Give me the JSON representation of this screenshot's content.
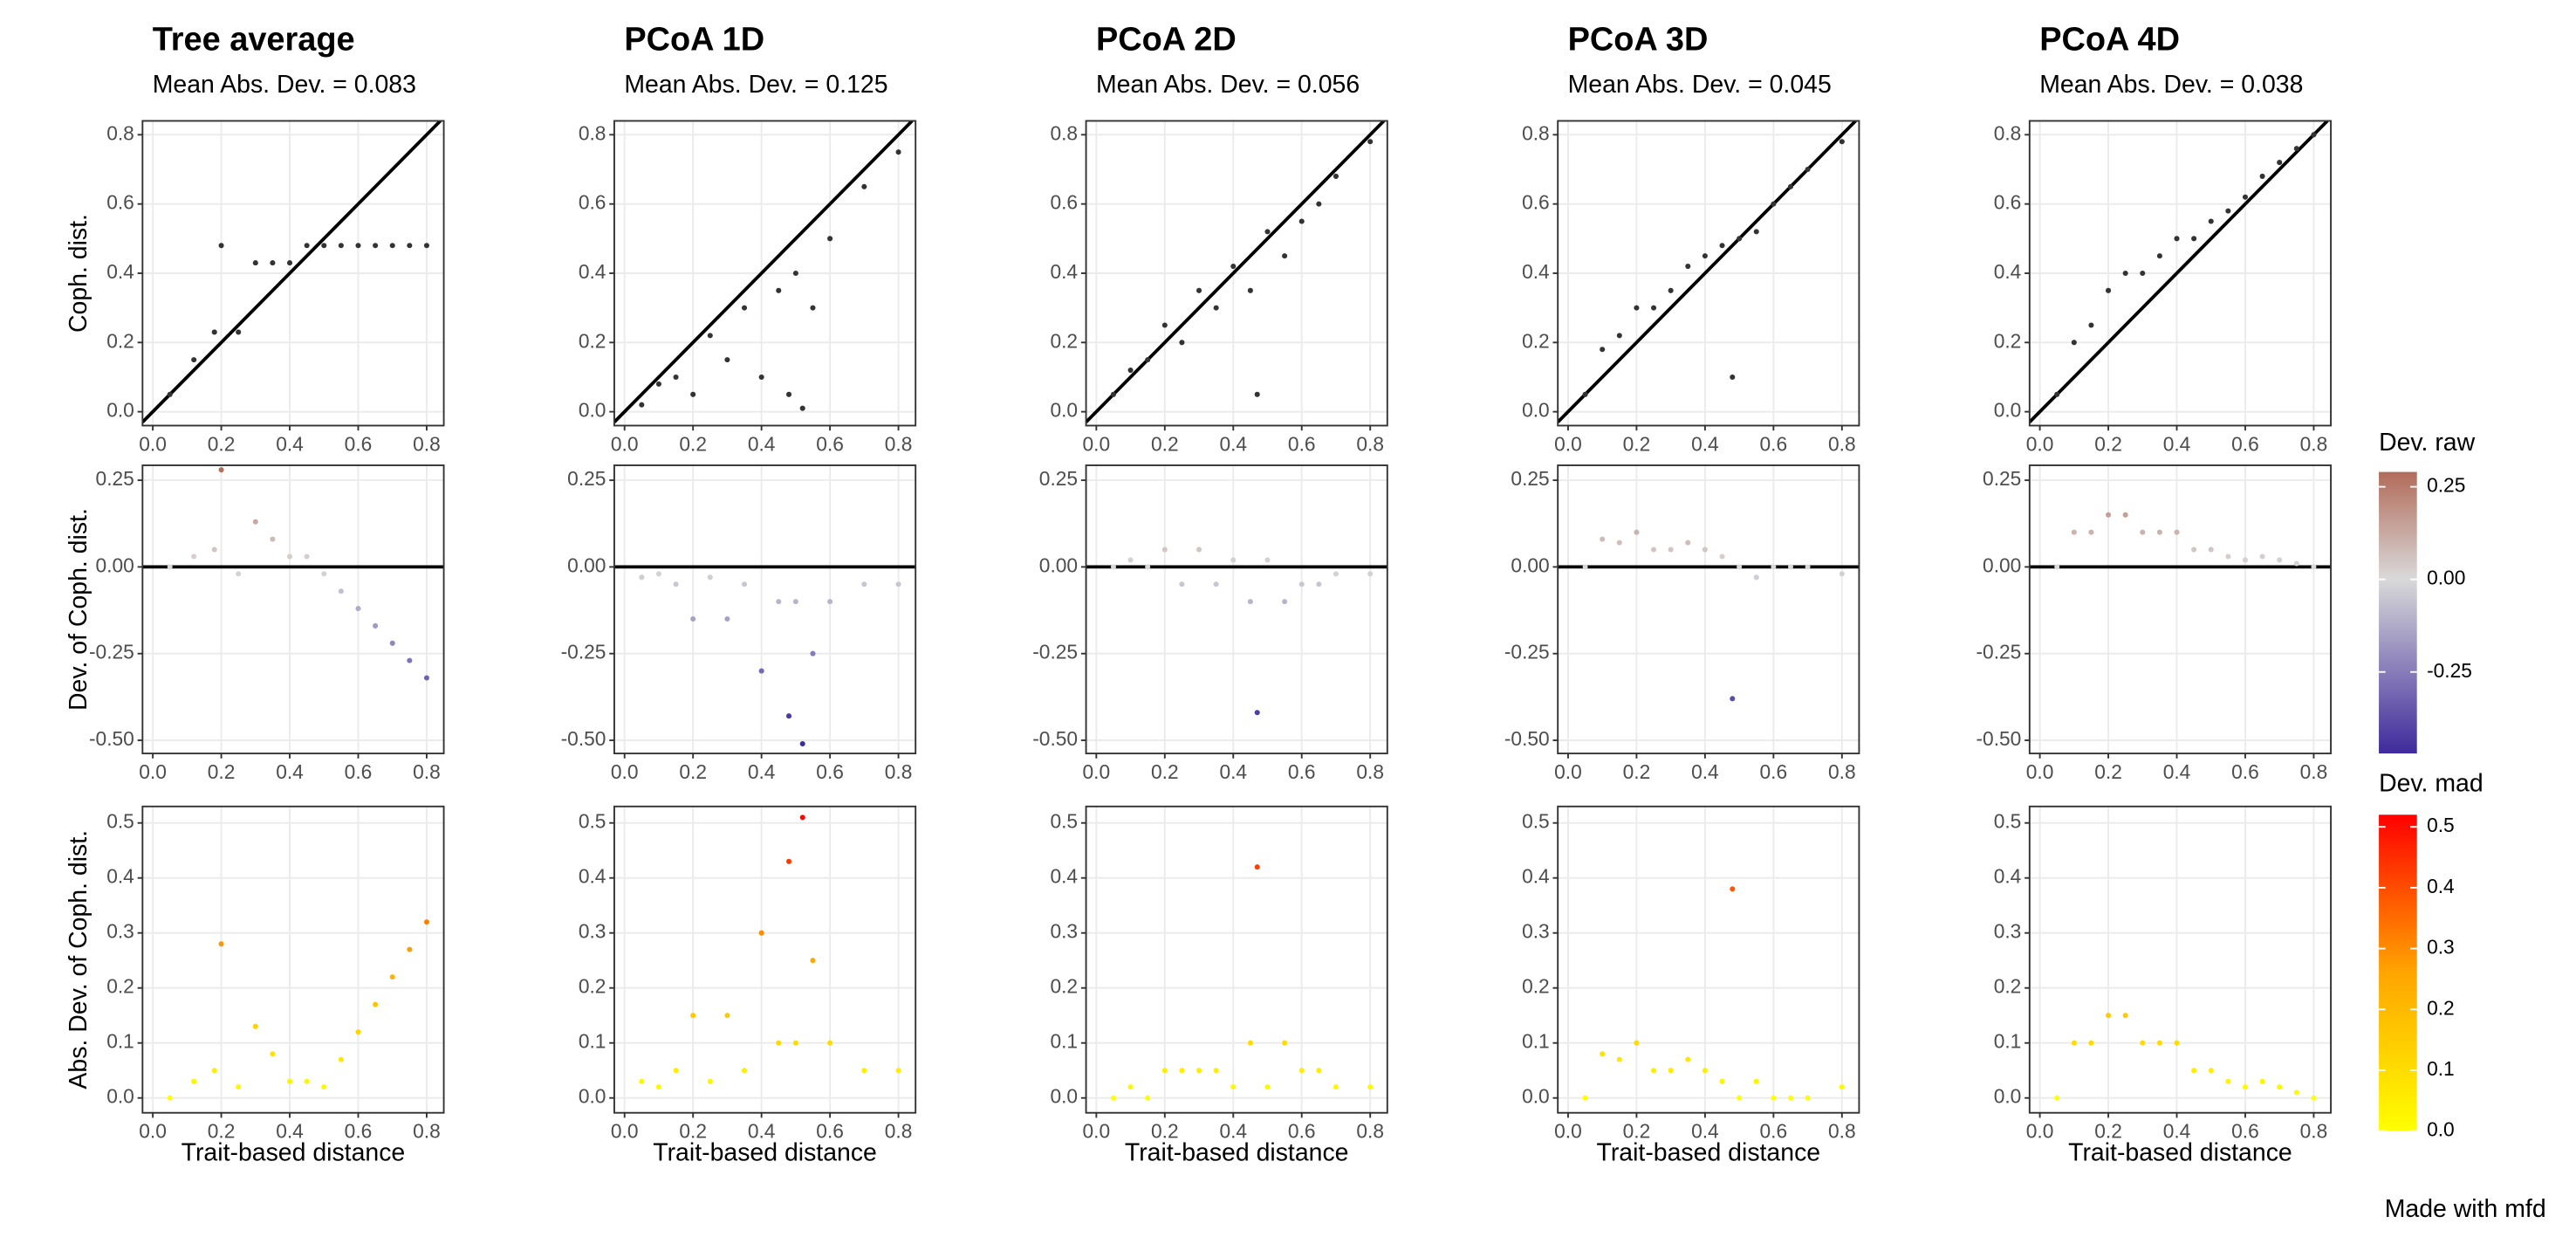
{
  "chart_data": {
    "type": "scatter",
    "caption": "Made with mfd",
    "x_label": "Trait-based distance",
    "xlim": [
      -0.03,
      0.85
    ],
    "xticks": [
      {
        "value": 0,
        "label": "0.0"
      },
      0.2,
      0.4,
      0.6,
      0.8
    ],
    "grid": true,
    "rows": [
      {
        "y_label": "Coph. dist.",
        "ylim": [
          -0.04,
          0.84
        ],
        "yticks": [
          {
            "value": 0,
            "label": "0.0"
          },
          0.2,
          0.4,
          0.6,
          0.8
        ],
        "reference_line": "diagonal",
        "point_color": "#333333"
      },
      {
        "y_label": "Dev. of Coph. dist.",
        "ylim": [
          -0.538,
          0.293
        ],
        "yticks": [
          0.25,
          {
            "value": 0,
            "label": "0.00"
          },
          -0.25,
          {
            "value": -0.5,
            "label": "-0.50"
          }
        ],
        "reference_line": "zero",
        "color_scale": {
          "title": "Dev. raw",
          "lim": [
            -0.47,
            0.29
          ],
          "stops": [
            -0.47,
            0,
            0.29
          ],
          "colors": [
            "#3f2a9c",
            "#d9d9d9",
            "#b26b5a"
          ],
          "ticks": [
            0.25,
            {
              "value": 0,
              "label": "0.00"
            },
            -0.25
          ]
        }
      },
      {
        "y_label": "Abs. Dev. of Coph. dist.",
        "ylim": [
          -0.027,
          0.53
        ],
        "yticks": [
          {
            "value": 0,
            "label": "0.0"
          },
          0.1,
          0.2,
          0.3,
          0.4,
          0.5
        ],
        "reference_line": "none",
        "color_scale": {
          "title": "Dev. mad",
          "lim": [
            0,
            0.52
          ],
          "stops": [
            0,
            0.26,
            0.52
          ],
          "colors": [
            "#ffff00",
            "#ffa500",
            "#ff0000"
          ],
          "ticks": [
            0.5,
            0.4,
            0.3,
            0.2,
            0.1,
            {
              "value": 0,
              "label": "0.0"
            }
          ]
        }
      }
    ],
    "columns": [
      {
        "title": "Tree average",
        "subtitle": "Mean Abs. Dev. = 0.083",
        "x": [
          0.05,
          0.12,
          0.18,
          0.2,
          0.25,
          0.3,
          0.35,
          0.4,
          0.45,
          0.5,
          0.55,
          0.6,
          0.65,
          0.7,
          0.75,
          0.8
        ],
        "panels": [
          {
            "y": [
              0.05,
              0.15,
              0.23,
              0.48,
              0.23,
              0.43,
              0.43,
              0.43,
              0.48,
              0.48,
              0.48,
              0.48,
              0.48,
              0.48,
              0.48,
              0.48
            ]
          },
          {
            "y": [
              0,
              0.03,
              0.05,
              0.28,
              -0.02,
              0.13,
              0.08,
              0.03,
              0.03,
              -0.02,
              -0.07,
              -0.12,
              -0.17,
              -0.22,
              -0.27,
              -0.32
            ]
          },
          {
            "y": [
              0,
              0.03,
              0.05,
              0.28,
              0.02,
              0.13,
              0.08,
              0.03,
              0.03,
              0.02,
              0.07,
              0.12,
              0.17,
              0.22,
              0.27,
              0.32
            ]
          }
        ]
      },
      {
        "title": "PCoA 1D",
        "subtitle": "Mean Abs. Dev. = 0.125",
        "x": [
          0.05,
          0.1,
          0.15,
          0.2,
          0.25,
          0.3,
          0.35,
          0.4,
          0.45,
          0.48,
          0.5,
          0.52,
          0.55,
          0.6,
          0.7,
          0.8
        ],
        "panels": [
          {
            "y": [
              0.02,
              0.08,
              0.1,
              0.05,
              0.22,
              0.15,
              0.3,
              0.1,
              0.35,
              0.05,
              0.4,
              0.01,
              0.3,
              0.5,
              0.65,
              0.75
            ]
          },
          {
            "y": [
              -0.03,
              -0.02,
              -0.05,
              -0.15,
              -0.03,
              -0.15,
              -0.05,
              -0.3,
              -0.1,
              -0.43,
              -0.1,
              -0.51,
              -0.25,
              -0.1,
              -0.05,
              -0.05
            ]
          },
          {
            "y": [
              0.03,
              0.02,
              0.05,
              0.15,
              0.03,
              0.15,
              0.05,
              0.3,
              0.1,
              0.43,
              0.1,
              0.51,
              0.25,
              0.1,
              0.05,
              0.05
            ]
          }
        ]
      },
      {
        "title": "PCoA 2D",
        "subtitle": "Mean Abs. Dev. = 0.056",
        "x": [
          0.05,
          0.1,
          0.15,
          0.2,
          0.25,
          0.3,
          0.35,
          0.4,
          0.45,
          0.47,
          0.5,
          0.55,
          0.6,
          0.65,
          0.7,
          0.8
        ],
        "panels": [
          {
            "y": [
              0.05,
              0.12,
              0.15,
              0.25,
              0.2,
              0.35,
              0.3,
              0.42,
              0.35,
              0.05,
              0.52,
              0.45,
              0.55,
              0.6,
              0.68,
              0.78
            ]
          },
          {
            "y": [
              0,
              0.02,
              0,
              0.05,
              -0.05,
              0.05,
              -0.05,
              0.02,
              -0.1,
              -0.42,
              0.02,
              -0.1,
              -0.05,
              -0.05,
              -0.02,
              -0.02
            ]
          },
          {
            "y": [
              0,
              0.02,
              0,
              0.05,
              0.05,
              0.05,
              0.05,
              0.02,
              0.1,
              0.42,
              0.02,
              0.1,
              0.05,
              0.05,
              0.02,
              0.02
            ]
          }
        ]
      },
      {
        "title": "PCoA 3D",
        "subtitle": "Mean Abs. Dev. = 0.045",
        "x": [
          0.05,
          0.1,
          0.15,
          0.2,
          0.25,
          0.3,
          0.35,
          0.4,
          0.45,
          0.48,
          0.5,
          0.55,
          0.6,
          0.65,
          0.7,
          0.8
        ],
        "panels": [
          {
            "y": [
              0.05,
              0.18,
              0.22,
              0.3,
              0.3,
              0.35,
              0.42,
              0.45,
              0.48,
              0.1,
              0.5,
              0.52,
              0.6,
              0.65,
              0.7,
              0.78
            ]
          },
          {
            "y": [
              0,
              0.08,
              0.07,
              0.1,
              0.05,
              0.05,
              0.07,
              0.05,
              0.03,
              -0.38,
              0,
              -0.03,
              0,
              0,
              0,
              -0.02
            ]
          },
          {
            "y": [
              0,
              0.08,
              0.07,
              0.1,
              0.05,
              0.05,
              0.07,
              0.05,
              0.03,
              0.38,
              0,
              0.03,
              0,
              0,
              0,
              0.02
            ]
          }
        ]
      },
      {
        "title": "PCoA 4D",
        "subtitle": "Mean Abs. Dev. = 0.038",
        "x": [
          0.05,
          0.1,
          0.15,
          0.2,
          0.25,
          0.3,
          0.35,
          0.4,
          0.45,
          0.5,
          0.55,
          0.6,
          0.65,
          0.7,
          0.75,
          0.8
        ],
        "panels": [
          {
            "y": [
              0.05,
              0.2,
              0.25,
              0.35,
              0.4,
              0.4,
              0.45,
              0.5,
              0.5,
              0.55,
              0.58,
              0.62,
              0.68,
              0.72,
              0.76,
              0.8
            ]
          },
          {
            "y": [
              0,
              0.1,
              0.1,
              0.15,
              0.15,
              0.1,
              0.1,
              0.1,
              0.05,
              0.05,
              0.03,
              0.02,
              0.03,
              0.02,
              0.01,
              0
            ]
          },
          {
            "y": [
              0,
              0.1,
              0.1,
              0.15,
              0.15,
              0.1,
              0.1,
              0.1,
              0.05,
              0.05,
              0.03,
              0.02,
              0.03,
              0.02,
              0.01,
              0
            ]
          }
        ]
      }
    ]
  }
}
